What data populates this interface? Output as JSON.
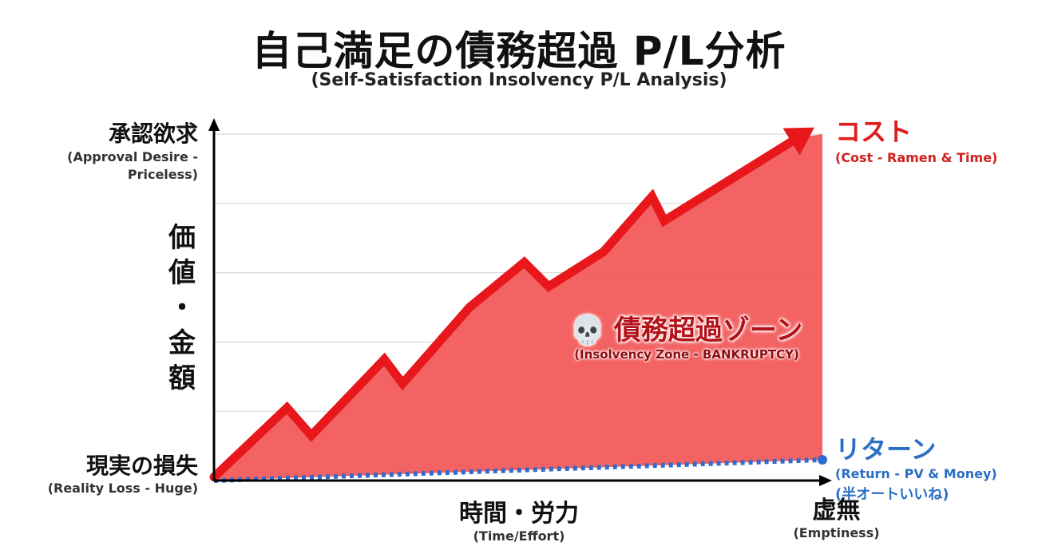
{
  "header": {
    "title": "自己満足の債務超過 P/L分析",
    "subtitle": "(Self-Satisfaction Insolvency P/L Analysis)"
  },
  "axes": {
    "y_top_jp": "承認欲求",
    "y_top_en_1": "(Approval Desire -",
    "y_top_en_2": "Priceless)",
    "y_mid_1": "価",
    "y_mid_2": "値",
    "y_mid_3": "・",
    "y_mid_4": "金",
    "y_mid_5": "額",
    "y_bottom_jp": "現実の損失",
    "y_bottom_en": "(Reality Loss - Huge)",
    "x_jp": "時間・労力",
    "x_en": "(Time/Effort)",
    "x_end_jp": "虚無",
    "x_end_en": "(Emptiness)"
  },
  "labels": {
    "cost_jp": "コスト",
    "cost_en": "(Cost - Ramen & Time)",
    "return_jp": "リターン",
    "return_en": "(Return - PV & Money)",
    "return_note": "(半オートいいね)",
    "zone_jp": "💀 債務超過ゾーン",
    "zone_en": "(Insolvency Zone - BANKRUPTCY)"
  },
  "colors": {
    "cost": "#e8171b",
    "cost_fill": "#f25b5b",
    "return": "#2f6ccc",
    "grid": "#d9d9d9",
    "axis": "#000000"
  },
  "chart_data": {
    "type": "area",
    "title": "自己満足の債務超過 P/L分析",
    "xlabel": "時間・労力",
    "ylabel": "価値・金額",
    "grid": true,
    "ylim": [
      0,
      100
    ],
    "xlim": [
      0,
      100
    ],
    "series": [
      {
        "name": "コスト",
        "style": "solid-arrow",
        "points": [
          [
            0,
            1
          ],
          [
            12,
            21
          ],
          [
            16,
            13
          ],
          [
            28,
            35
          ],
          [
            31,
            28
          ],
          [
            42,
            50
          ],
          [
            51,
            63
          ],
          [
            55,
            56
          ],
          [
            64,
            66
          ],
          [
            72,
            82
          ],
          [
            74,
            75
          ],
          [
            96,
            99
          ]
        ]
      },
      {
        "name": "リターン",
        "style": "dotted",
        "points": [
          [
            0,
            0
          ],
          [
            100,
            6
          ]
        ]
      }
    ],
    "gridlines_y": [
      20,
      40,
      60,
      80,
      100
    ]
  }
}
